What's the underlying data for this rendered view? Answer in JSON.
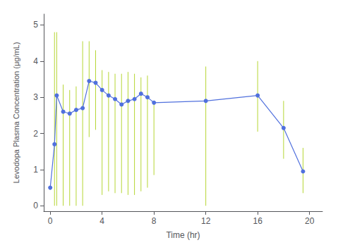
{
  "chart_data": {
    "type": "line",
    "x": [
      0,
      0.33,
      0.5,
      1,
      1.5,
      2,
      2.5,
      3,
      3.5,
      4,
      4.5,
      5,
      5.5,
      6,
      6.5,
      7,
      7.5,
      8,
      12,
      16,
      18,
      19.5
    ],
    "values": [
      0.5,
      1.7,
      3.05,
      2.6,
      2.55,
      2.65,
      2.7,
      3.45,
      3.4,
      3.2,
      3.05,
      2.95,
      2.8,
      2.9,
      2.95,
      3.1,
      3.0,
      2.85,
      2.9,
      3.05,
      2.15,
      0.95
    ],
    "y_upper": [
      0.5,
      4.8,
      4.8,
      3.35,
      3.2,
      3.3,
      4.55,
      4.55,
      4.3,
      3.75,
      3.7,
      3.65,
      3.65,
      3.7,
      3.65,
      3.55,
      3.6,
      2.85,
      3.85,
      4.0,
      2.9,
      1.6
    ],
    "y_lower": [
      0.5,
      0.0,
      0.0,
      0.0,
      0.0,
      0.0,
      0.0,
      1.9,
      2.1,
      0.3,
      0.4,
      0.35,
      0.35,
      0.3,
      0.3,
      0.4,
      0.5,
      0.85,
      0.0,
      2.05,
      1.3,
      0.35
    ],
    "xlabel": "Time (hr)",
    "ylabel": "Levodopa Plasma Concentration (μg/mL)",
    "xlim": [
      -0.5,
      21
    ],
    "ylim": [
      -0.15,
      5.3
    ],
    "xticks": [
      0,
      4,
      8,
      12,
      16,
      20
    ],
    "yticks": [
      0,
      1,
      2,
      3,
      4,
      5
    ],
    "grid": false,
    "marker": "circle"
  }
}
